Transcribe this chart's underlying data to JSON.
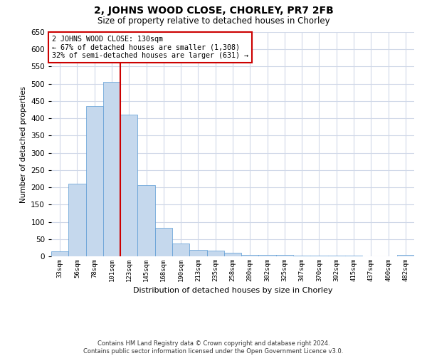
{
  "title": "2, JOHNS WOOD CLOSE, CHORLEY, PR7 2FB",
  "subtitle": "Size of property relative to detached houses in Chorley",
  "xlabel": "Distribution of detached houses by size in Chorley",
  "ylabel": "Number of detached properties",
  "footer_line1": "Contains HM Land Registry data © Crown copyright and database right 2024.",
  "footer_line2": "Contains public sector information licensed under the Open Government Licence v3.0.",
  "annotation_line1": "2 JOHNS WOOD CLOSE: 130sqm",
  "annotation_line2": "← 67% of detached houses are smaller (1,308)",
  "annotation_line3": "32% of semi-detached houses are larger (631) →",
  "bar_color": "#c5d8ed",
  "bar_edge_color": "#5b9bd5",
  "vline_color": "#cc0000",
  "annotation_box_edge_color": "#cc0000",
  "grid_color": "#d0d8e8",
  "background_color": "#ffffff",
  "categories": [
    "33sqm",
    "56sqm",
    "78sqm",
    "101sqm",
    "123sqm",
    "145sqm",
    "168sqm",
    "190sqm",
    "213sqm",
    "235sqm",
    "258sqm",
    "280sqm",
    "302sqm",
    "325sqm",
    "347sqm",
    "370sqm",
    "392sqm",
    "415sqm",
    "437sqm",
    "460sqm",
    "482sqm"
  ],
  "values": [
    15,
    211,
    435,
    505,
    410,
    207,
    83,
    38,
    18,
    17,
    10,
    5,
    4,
    4,
    3,
    3,
    3,
    3,
    1,
    1,
    4
  ],
  "vline_x": 3.5,
  "ylim": [
    0,
    650
  ],
  "yticks": [
    0,
    50,
    100,
    150,
    200,
    250,
    300,
    350,
    400,
    450,
    500,
    550,
    600,
    650
  ]
}
